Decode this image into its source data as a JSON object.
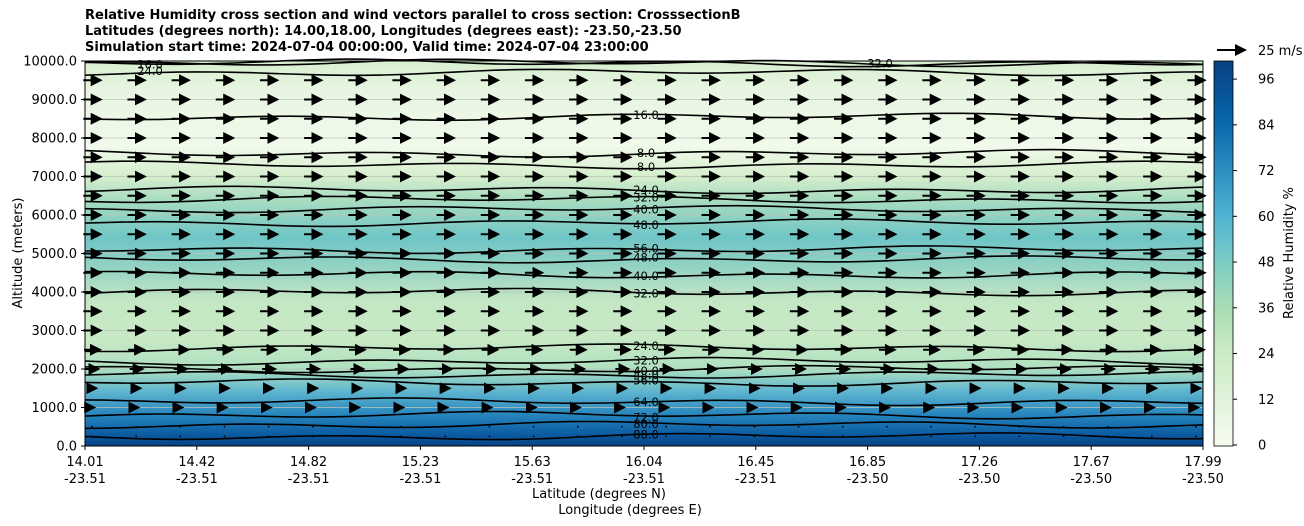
{
  "title_lines": [
    "Relative Humidity cross section and wind vectors parallel to cross section: CrosssectionB",
    "Latitudes (degrees north): 14.00,18.00, Longitudes (degrees east): -23.50,-23.50",
    "Simulation start time: 2024-07-04 00:00:00, Valid time: 2024-07-04 23:00:00"
  ],
  "chart_data": {
    "type": "contour",
    "title": "Relative Humidity cross section and wind vectors parallel to cross section: CrosssectionB",
    "xlabel": "Latitude (degrees N)",
    "xlabel2": "Longitude (degrees E)",
    "ylabel": "Altitude (meters)",
    "ylim": [
      0,
      10000
    ],
    "xlim": [
      14.01,
      17.99
    ],
    "y_ticks": [
      "0.0",
      "1000.0",
      "2000.0",
      "3000.0",
      "4000.0",
      "5000.0",
      "6000.0",
      "7000.0",
      "8000.0",
      "9000.0",
      "10000.0"
    ],
    "x_ticks": [
      {
        "lat": "14.01",
        "lon": "-23.51"
      },
      {
        "lat": "14.42",
        "lon": "-23.51"
      },
      {
        "lat": "14.82",
        "lon": "-23.51"
      },
      {
        "lat": "15.23",
        "lon": "-23.51"
      },
      {
        "lat": "15.63",
        "lon": "-23.51"
      },
      {
        "lat": "16.04",
        "lon": "-23.51"
      },
      {
        "lat": "16.45",
        "lon": "-23.51"
      },
      {
        "lat": "16.85",
        "lon": "-23.50"
      },
      {
        "lat": "17.26",
        "lon": "-23.50"
      },
      {
        "lat": "17.67",
        "lon": "-23.50"
      },
      {
        "lat": "17.99",
        "lon": "-23.50"
      }
    ],
    "colorbar": {
      "label": "Relative Humidity %",
      "ticks": [
        "0",
        "12",
        "24",
        "36",
        "48",
        "60",
        "72",
        "84",
        "96"
      ],
      "range": [
        0,
        100
      ],
      "levels": 25
    },
    "rh_profile": [
      {
        "alt": 0,
        "rh": 94
      },
      {
        "alt": 400,
        "rh": 88
      },
      {
        "alt": 800,
        "rh": 78
      },
      {
        "alt": 1200,
        "rh": 64
      },
      {
        "alt": 1600,
        "rh": 54
      },
      {
        "alt": 2000,
        "rh": 40
      },
      {
        "alt": 2500,
        "rh": 28
      },
      {
        "alt": 3000,
        "rh": 24
      },
      {
        "alt": 3800,
        "rh": 30
      },
      {
        "alt": 4300,
        "rh": 38
      },
      {
        "alt": 5000,
        "rh": 54
      },
      {
        "alt": 5600,
        "rh": 50
      },
      {
        "alt": 6200,
        "rh": 38
      },
      {
        "alt": 6800,
        "rh": 22
      },
      {
        "alt": 7500,
        "rh": 8
      },
      {
        "alt": 8500,
        "rh": 12
      },
      {
        "alt": 9500,
        "rh": 20
      },
      {
        "alt": 10000,
        "rh": 26
      }
    ],
    "contours": [
      {
        "level": "88.0",
        "label": "88.0",
        "alt": 250
      },
      {
        "level": "80.0",
        "label": "80.0",
        "alt": 550
      },
      {
        "level": "72.0",
        "label": "72.0",
        "alt": 800
      },
      {
        "level": "64.0",
        "label": "64.0",
        "alt": 1150
      },
      {
        "level": "56.0",
        "label": "56.0",
        "alt": 1650
      },
      {
        "level": "48.0",
        "label": "48.0",
        "alt": 1850
      },
      {
        "level": "40.0",
        "label": "40.0",
        "alt": 2000
      },
      {
        "level": "32.0",
        "label": "32.0",
        "alt": 2200
      },
      {
        "level": "24.0",
        "label": "24.0",
        "alt": 2550
      },
      {
        "level": "32.0",
        "label": "32.0",
        "alt": 4000
      },
      {
        "level": "40.0",
        "label": "40.0",
        "alt": 4450
      },
      {
        "level": "48.0",
        "label": "48.0",
        "alt": 4850
      },
      {
        "level": "56.0",
        "label": "56.0",
        "alt": 5100
      },
      {
        "level": "48.0",
        "label": "48.0",
        "alt": 5800
      },
      {
        "level": "40.0",
        "label": "40.0",
        "alt": 6150
      },
      {
        "level": "32.0",
        "label": "32.0",
        "alt": 6400
      },
      {
        "level": "24.0",
        "label": "24.0",
        "alt": 6650
      },
      {
        "level": "8.0",
        "label": "8.0",
        "alt": 7300
      },
      {
        "level": "8.0",
        "label": "8.0",
        "alt": 7600
      },
      {
        "level": "16.0",
        "label": "16.0",
        "alt": 8550
      },
      {
        "level": "24.0",
        "label": "24.0",
        "alt": 9700
      },
      {
        "level": "32.0",
        "label": "32.0",
        "alt": 9950
      },
      {
        "level": "16.0",
        "label": "16.0",
        "alt": 9950
      }
    ],
    "wind_reference": {
      "speed": "25 m/s",
      "label": "25 m/s"
    },
    "wind_field": {
      "columns": 26,
      "rows_alt": [
        250,
        500,
        1000,
        1500,
        2000,
        2500,
        3000,
        3500,
        4000,
        4500,
        5000,
        5500,
        6000,
        6500,
        7000,
        7500,
        8000,
        8500,
        9000,
        9500
      ],
      "speeds_ms": [
        1,
        2,
        3,
        6,
        9,
        11,
        12,
        12,
        12,
        12,
        12,
        12,
        12,
        12,
        12,
        12,
        12,
        12,
        12,
        12
      ],
      "direction": "parallel, southward-to-northward"
    }
  }
}
